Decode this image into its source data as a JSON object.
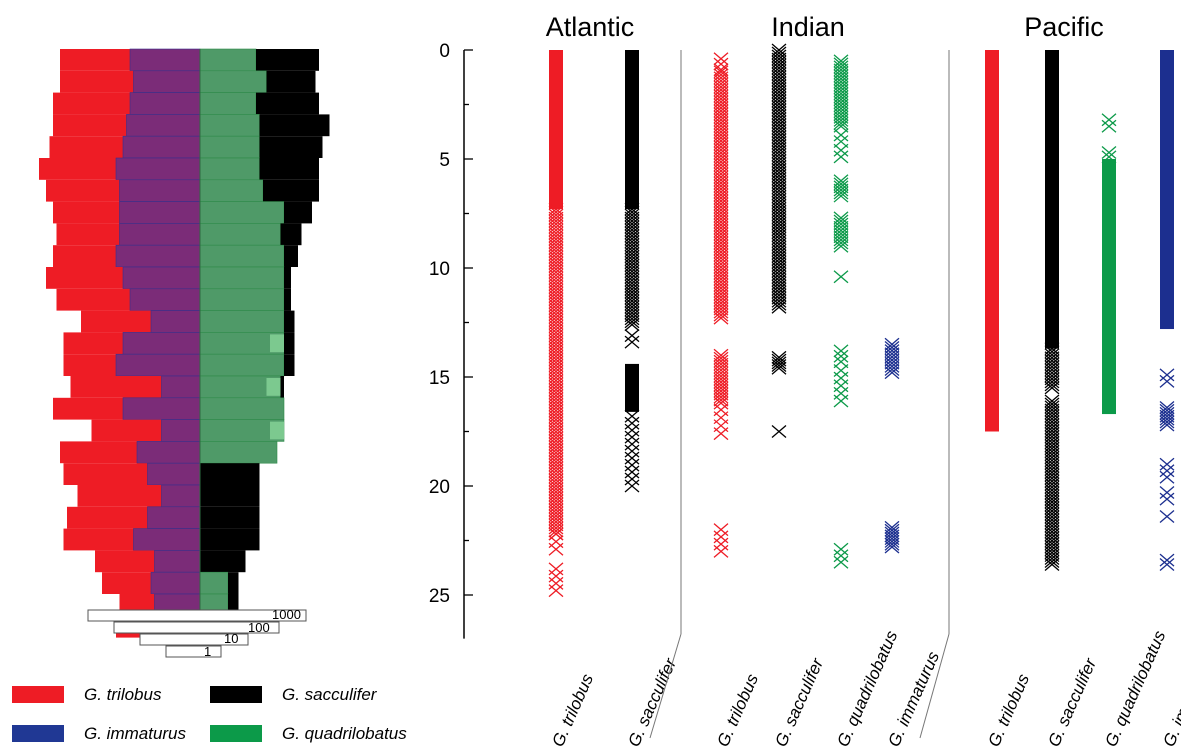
{
  "colors": {
    "red": "#ee1c25",
    "purple": "#7b2c78",
    "green": "#4f9a68",
    "light_green": "#7cc98f",
    "black": "#000000",
    "blue": "#1c2f8f",
    "legend_blue": "#203894",
    "legend_green": "#0c9a49"
  },
  "legend": [
    {
      "label": "G. trilobus",
      "color_key": "red"
    },
    {
      "label": "G. sacculifer",
      "color_key": "black"
    },
    {
      "label": "G. immaturus",
      "color_key": "legend_blue"
    },
    {
      "label": "G. quadrilobatus",
      "color_key": "legend_green"
    }
  ],
  "chart_data": [
    {
      "type": "bar",
      "orientation": "horizontal",
      "subtype": "centered log-scale abundance profile",
      "title": "",
      "scale_bar_labels": [
        "1000",
        "100",
        "10",
        "1"
      ],
      "rows": [
        {
          "red": 1.0,
          "purple": 1.0,
          "green": 0.8,
          "black": 0.9
        },
        {
          "red": 1.05,
          "purple": 0.95,
          "green": 0.95,
          "black": 0.7
        },
        {
          "red": 1.1,
          "purple": 1.0,
          "green": 0.8,
          "black": 0.9
        },
        {
          "red": 1.05,
          "purple": 1.05,
          "green": 0.85,
          "black": 1.0
        },
        {
          "red": 1.05,
          "purple": 1.1,
          "green": 0.85,
          "black": 0.9
        },
        {
          "red": 1.1,
          "purple": 1.2,
          "green": 0.85,
          "black": 0.85
        },
        {
          "red": 1.05,
          "purple": 1.15,
          "green": 0.9,
          "black": 0.8
        },
        {
          "red": 0.95,
          "purple": 1.15,
          "green": 1.2,
          "black": 0.4
        },
        {
          "red": 0.9,
          "purple": 1.15,
          "green": 1.15,
          "black": 0.3
        },
        {
          "red": 0.9,
          "purple": 1.2,
          "green": 1.2,
          "black": 0.2
        },
        {
          "red": 1.1,
          "purple": 1.1,
          "green": 1.2,
          "black": 0.1
        },
        {
          "red": 1.05,
          "purple": 1.0,
          "green": 1.2,
          "black": 0.1
        },
        {
          "red": 1.0,
          "purple": 0.7,
          "green": 1.2,
          "black": 0.15
        },
        {
          "red": 0.85,
          "purple": 1.1,
          "green": 1.2,
          "black": 0.15
        },
        {
          "red": 0.75,
          "purple": 1.2,
          "green": 1.2,
          "black": 0.15
        },
        {
          "red": 1.3,
          "purple": 0.55,
          "green": 1.15,
          "black": 0.05
        },
        {
          "red": 1.0,
          "purple": 1.1,
          "green": 1.2,
          "black": 0.0
        },
        {
          "red": 1.0,
          "purple": 0.55,
          "green": 1.2,
          "black": 0.0
        },
        {
          "red": 1.1,
          "purple": 0.9,
          "green": 1.1,
          "black": 0.0
        },
        {
          "red": 1.2,
          "purple": 0.75,
          "green": 0.0,
          "black": 0.85
        },
        {
          "red": 1.2,
          "purple": 0.55,
          "green": 0.0,
          "black": 0.85
        },
        {
          "red": 1.15,
          "purple": 0.75,
          "green": 0.0,
          "black": 0.85
        },
        {
          "red": 1.0,
          "purple": 0.95,
          "green": 0.0,
          "black": 0.85
        },
        {
          "red": 0.85,
          "purple": 0.65,
          "green": 0.0,
          "black": 0.65
        },
        {
          "red": 0.7,
          "purple": 0.7,
          "green": 0.4,
          "black": 0.15
        },
        {
          "red": 0.5,
          "purple": 0.65,
          "green": 0.4,
          "black": 0.15
        },
        {
          "red": 0.4,
          "purple": 0.0,
          "green": 0.0,
          "black": 0.0
        }
      ]
    },
    {
      "type": "scatter",
      "marker": "x",
      "ylabel": "",
      "ylim": [
        0,
        27
      ],
      "y_inverted": true,
      "y_ticks": [
        "0",
        "5",
        "10",
        "15",
        "20",
        "25"
      ],
      "groups": [
        {
          "name": "Atlantic",
          "columns": [
            {
              "label": "G. trilobus",
              "color_key": "red",
              "segments": [
                [
                  0,
                  7.3,
                  "solid"
                ],
                [
                  7.3,
                  22.2,
                  "dense"
                ],
                [
                  22.2,
                  22.9,
                  "sparse"
                ],
                [
                  23.8,
                  24.8,
                  "sparse"
                ]
              ]
            },
            {
              "label": "G. sacculifer",
              "color_key": "black",
              "segments": [
                [
                  0,
                  7.3,
                  "solid"
                ],
                [
                  7.3,
                  12.6,
                  "dense"
                ],
                [
                  13.1,
                  13.4,
                  "sparse"
                ],
                [
                  14.4,
                  16.6,
                  "solid"
                ],
                [
                  16.8,
                  20.0,
                  "sparse"
                ]
              ]
            }
          ]
        },
        {
          "name": "Indian",
          "columns": [
            {
              "label": "G. trilobus",
              "color_key": "red",
              "segments": [
                [
                  0.4,
                  0.9,
                  "sparse"
                ],
                [
                  1.0,
                  12.3,
                  "dense"
                ],
                [
                  14.0,
                  16.2,
                  "dense"
                ],
                [
                  16.5,
                  17.6,
                  "sparse"
                ],
                [
                  22.0,
                  23.0,
                  "sparse"
                ]
              ]
            },
            {
              "label": "G. sacculifer",
              "color_key": "black",
              "segments": [
                [
                  0,
                  11.8,
                  "dense"
                ],
                [
                  14.1,
                  14.6,
                  "dense"
                ],
                [
                  17.5,
                  17.5,
                  "sparse"
                ]
              ]
            },
            {
              "label": "G. quadrilobatus",
              "color_key": "legend_green",
              "segments": [
                [
                  0.5,
                  3.5,
                  "dense"
                ],
                [
                  3.9,
                  4.2,
                  "sparse"
                ],
                [
                  4.6,
                  4.9,
                  "sparse"
                ],
                [
                  6.0,
                  6.7,
                  "dense"
                ],
                [
                  7.7,
                  9.0,
                  "dense"
                ],
                [
                  10.4,
                  10.4,
                  "sparse"
                ],
                [
                  13.8,
                  14.3,
                  "sparse"
                ],
                [
                  14.7,
                  16.1,
                  "sparse"
                ],
                [
                  22.9,
                  23.5,
                  "sparse"
                ]
              ]
            },
            {
              "label": "G. immaturus",
              "color_key": "blue",
              "segments": [
                [
                  13.5,
                  14.8,
                  "dense"
                ],
                [
                  21.9,
                  22.8,
                  "dense"
                ]
              ]
            }
          ]
        },
        {
          "name": "Pacific",
          "columns": [
            {
              "label": "G. trilobus",
              "color_key": "red",
              "segments": [
                [
                  0,
                  17.5,
                  "solid"
                ]
              ]
            },
            {
              "label": "G. sacculifer",
              "color_key": "black",
              "segments": [
                [
                  0,
                  13.7,
                  "solid"
                ],
                [
                  13.7,
                  15.5,
                  "dense"
                ],
                [
                  16.1,
                  23.6,
                  "dense"
                ]
              ]
            },
            {
              "label": "G. quadrilobatus",
              "color_key": "legend_green",
              "segments": [
                [
                  3.2,
                  3.5,
                  "sparse"
                ],
                [
                  4.7,
                  4.9,
                  "sparse"
                ],
                [
                  5.0,
                  16.7,
                  "solid"
                ]
              ]
            },
            {
              "label": "G. immaturus",
              "color_key": "blue",
              "segments": [
                [
                  0,
                  12.8,
                  "solid"
                ],
                [
                  14.9,
                  15.2,
                  "sparse"
                ],
                [
                  16.4,
                  17.2,
                  "dense"
                ],
                [
                  19.0,
                  19.6,
                  "sparse"
                ],
                [
                  20.3,
                  20.6,
                  "sparse"
                ],
                [
                  21.4,
                  21.4,
                  "sparse"
                ],
                [
                  23.4,
                  23.6,
                  "dense"
                ]
              ]
            }
          ]
        }
      ]
    }
  ]
}
